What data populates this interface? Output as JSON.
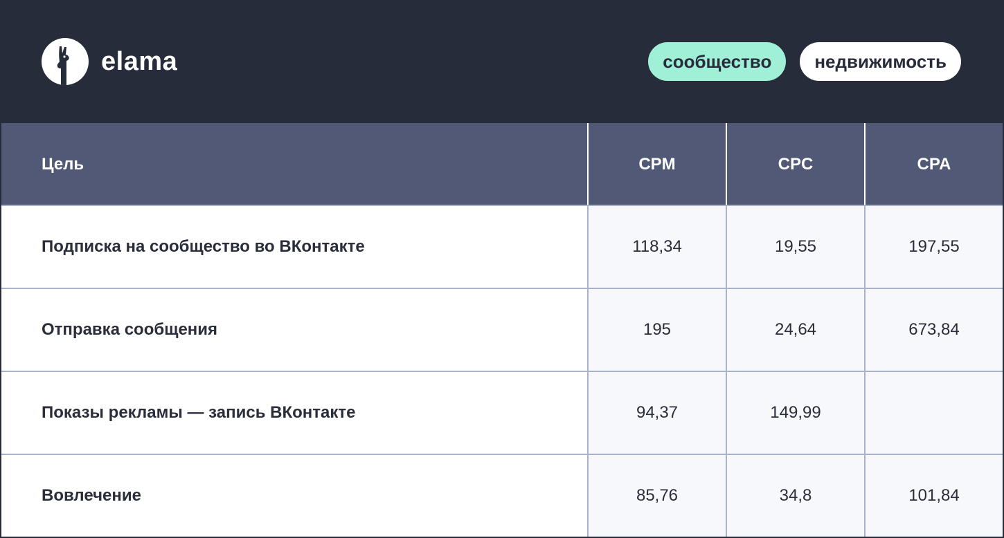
{
  "brand": {
    "name": "elama"
  },
  "tags": [
    {
      "label": "сообщество",
      "color": "#9ff0d6"
    },
    {
      "label": "недвижимость",
      "color": "#ffffff"
    }
  ],
  "table": {
    "headers": [
      "Цель",
      "CPM",
      "CPC",
      "CPA"
    ],
    "rows": [
      {
        "goal": "Подписка на сообщество во ВКонтакте",
        "cpm": "118,34",
        "cpc": "19,55",
        "cpa": "197,55"
      },
      {
        "goal": "Отправка сообщения",
        "cpm": "195",
        "cpc": "24,64",
        "cpa": "673,84"
      },
      {
        "goal": "Показы рекламы — запись ВКонтакте",
        "cpm": "94,37",
        "cpc": "149,99",
        "cpa": ""
      },
      {
        "goal": "Вовлечение",
        "cpm": "85,76",
        "cpc": "34,8",
        "cpa": "101,84"
      }
    ]
  },
  "colors": {
    "background": "#272c3b",
    "header_row": "#515977",
    "accent_green": "#9ff0d6",
    "grid_line": "#aab2ca"
  },
  "icons": {
    "logo": "llama-icon"
  }
}
